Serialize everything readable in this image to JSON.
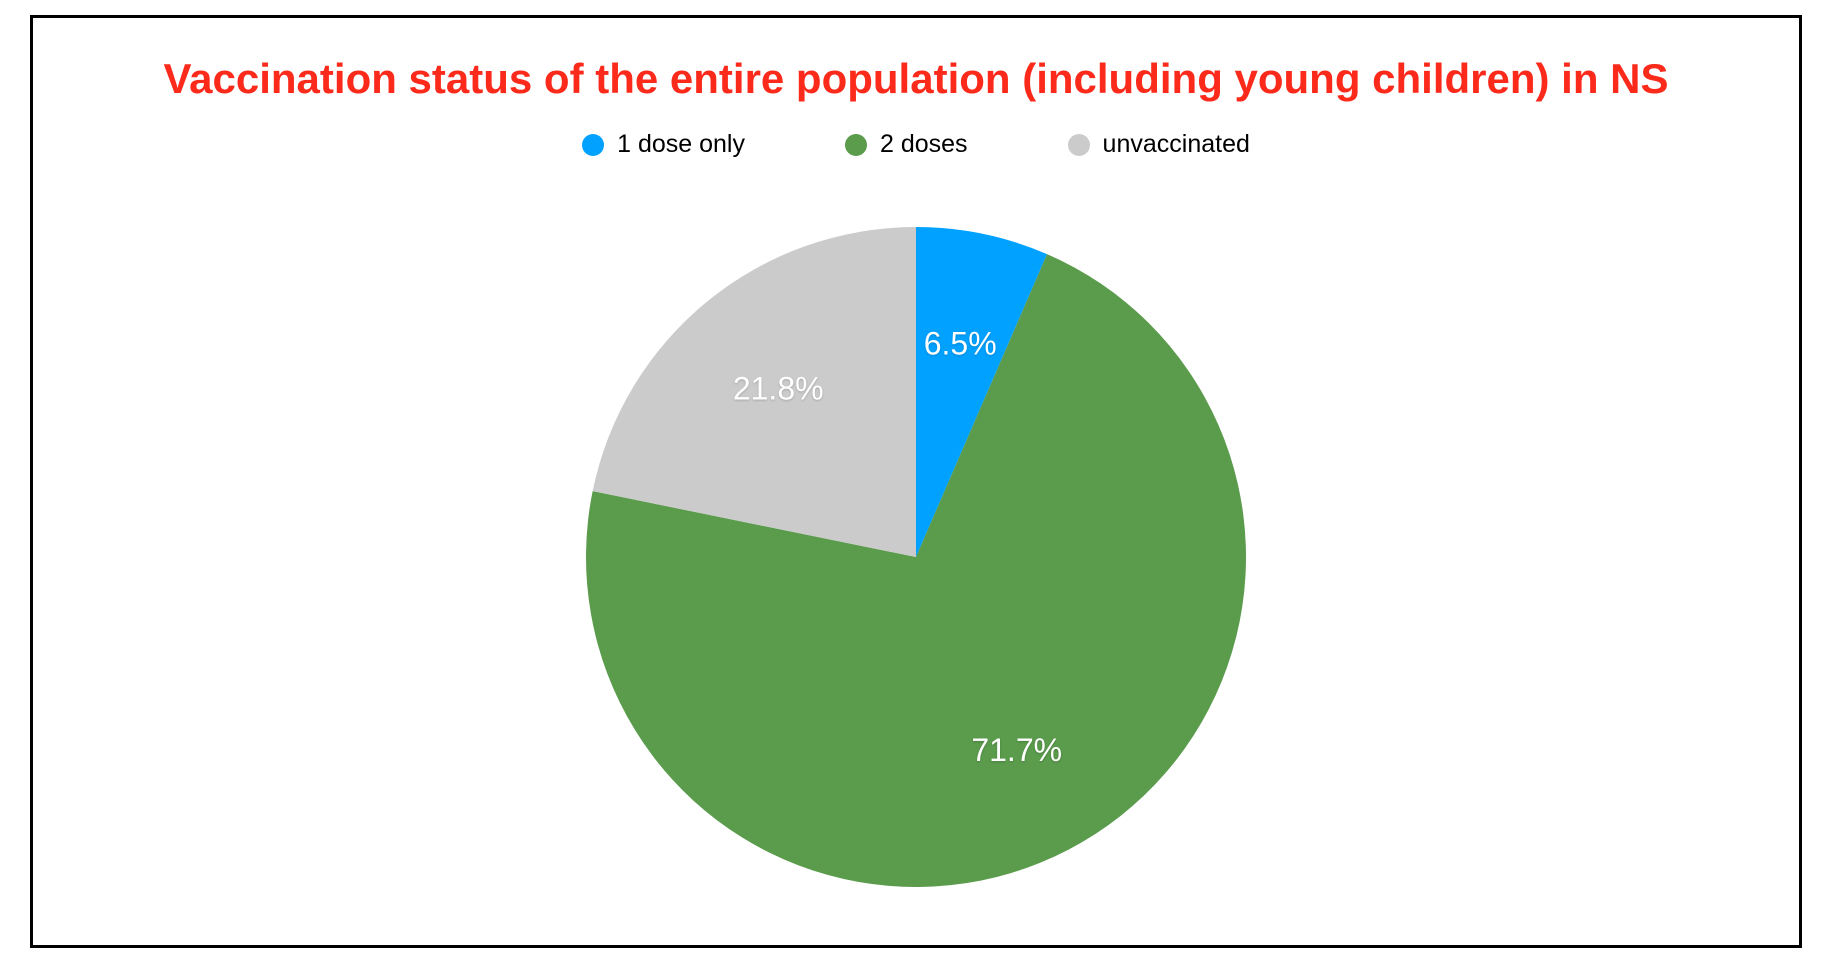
{
  "title": {
    "text": "Vaccination status of the entire population (including young children) in NS",
    "color": "#FB2A1B"
  },
  "legend": {
    "items": [
      {
        "label": "1 dose only",
        "color": "#00A1FF"
      },
      {
        "label": "2 doses",
        "color": "#5A9B4C"
      },
      {
        "label": "unvaccinated",
        "color": "#CBCBCB"
      }
    ]
  },
  "chart_data": {
    "type": "pie",
    "title": "Vaccination status of the entire population (including young children) in NS",
    "slices": [
      {
        "label": "1 dose only",
        "value": 6.5,
        "display_label": "6.5%",
        "color": "#00A1FF"
      },
      {
        "label": "2 doses",
        "value": 71.7,
        "display_label": "71.7%",
        "color": "#5A9B4C"
      },
      {
        "label": "unvaccinated",
        "value": 21.8,
        "display_label": "21.8%",
        "color": "#CBCBCB"
      }
    ],
    "start_angle": "top",
    "direction": "clockwise",
    "slice_label_color": "#FFFFFF",
    "slice_label_radius_ratio": 0.66,
    "legend_position": "top-center",
    "title_color": "#FB2A1B",
    "frame_border_color": "#000000"
  }
}
